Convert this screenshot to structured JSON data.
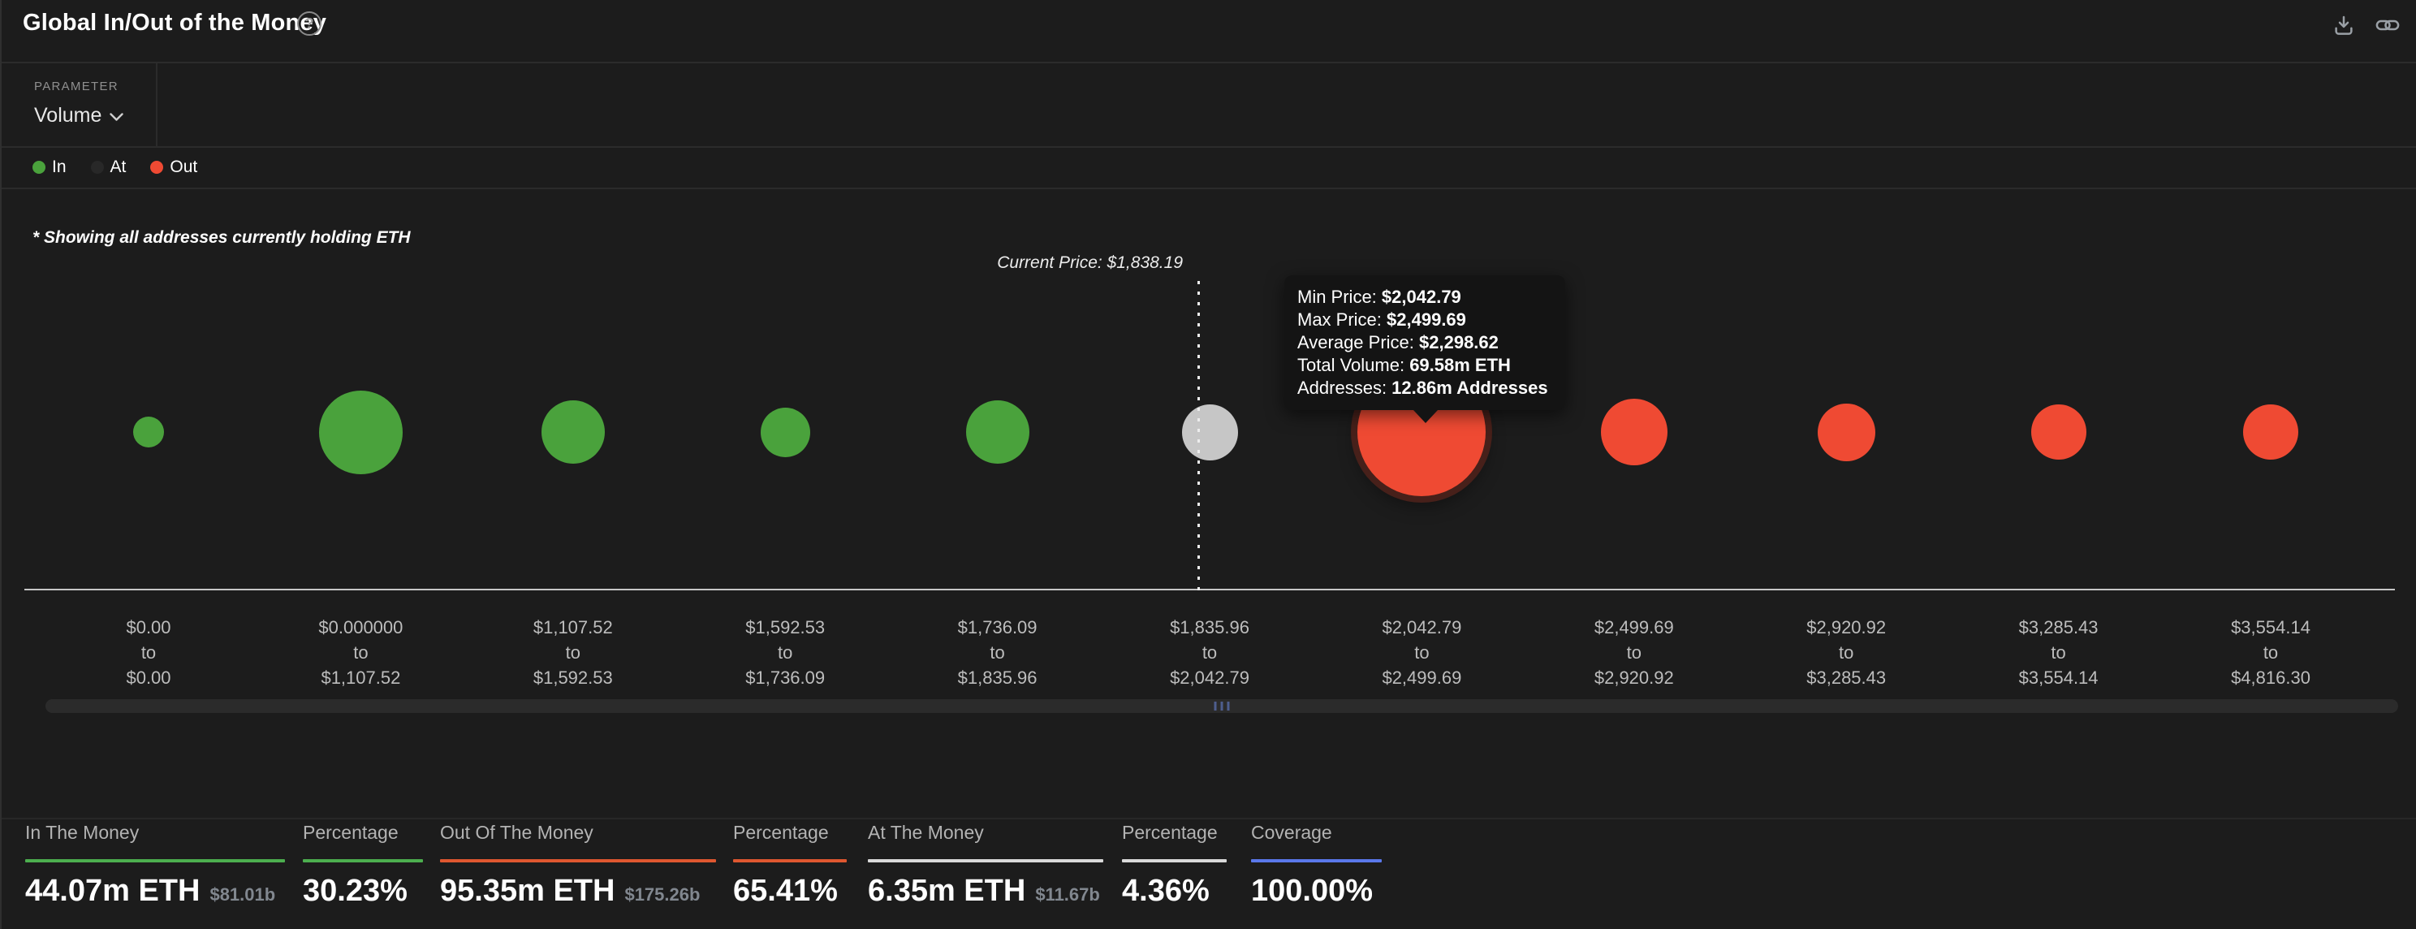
{
  "widget": {
    "title": "Global In/Out of the Money"
  },
  "header": {
    "help_icon": "?",
    "actions": {
      "download": "download-icon",
      "link": "copy-link-icon"
    }
  },
  "parameter": {
    "label": "PARAMETER",
    "value": "Volume"
  },
  "legend": {
    "items": [
      {
        "label": "In",
        "color": "#4aa23c"
      },
      {
        "label": "At",
        "color": "#282828"
      },
      {
        "label": "Out",
        "color": "#ef4a33"
      }
    ]
  },
  "note": "* Showing all addresses currently holding ETH",
  "current_price": {
    "label": "Current Price: $1,838.19"
  },
  "tooltip": {
    "rows": [
      {
        "label": "Min Price: ",
        "value": "$2,042.79"
      },
      {
        "label": "Max Price: ",
        "value": "$2,499.69"
      },
      {
        "label": "Average Price: ",
        "value": "$2,298.62"
      },
      {
        "label": "Total Volume: ",
        "value": "69.58m ETH"
      },
      {
        "label": "Addresses: ",
        "value": "12.86m Addresses"
      }
    ]
  },
  "chart_data": {
    "type": "bubble",
    "title": "Global In/Out of the Money",
    "asset": "ETH",
    "parameter": "Volume",
    "current_price": 1838.19,
    "current_price_label": "Current Price: $1,838.19",
    "legend": [
      "In",
      "At",
      "Out"
    ],
    "status_colors": {
      "in": "#4aa23c",
      "at": "#c6c6c6",
      "out": "#ef4a33"
    },
    "hovered_bucket_index": 6,
    "hovered_bucket_details": {
      "min_price": "$2,042.79",
      "max_price": "$2,499.69",
      "average_price": "$2,298.62",
      "total_volume": "69.58m ETH",
      "addresses": "12.86m Addresses"
    },
    "buckets": [
      {
        "range": [
          "$0.00",
          "to",
          "$0.00"
        ],
        "status": "in",
        "size": 38
      },
      {
        "range": [
          "$0.000000",
          "to",
          "$1,107.52"
        ],
        "status": "in",
        "size": 103
      },
      {
        "range": [
          "$1,107.52",
          "to",
          "$1,592.53"
        ],
        "status": "in",
        "size": 78
      },
      {
        "range": [
          "$1,592.53",
          "to",
          "$1,736.09"
        ],
        "status": "in",
        "size": 61
      },
      {
        "range": [
          "$1,736.09",
          "to",
          "$1,835.96"
        ],
        "status": "in",
        "size": 78
      },
      {
        "range": [
          "$1,835.96",
          "to",
          "$2,042.79"
        ],
        "status": "at",
        "size": 69
      },
      {
        "range": [
          "$2,042.79",
          "to",
          "$2,499.69"
        ],
        "status": "out",
        "size": 158,
        "hovered": true
      },
      {
        "range": [
          "$2,499.69",
          "to",
          "$2,920.92"
        ],
        "status": "out",
        "size": 82
      },
      {
        "range": [
          "$2,920.92",
          "to",
          "$3,285.43"
        ],
        "status": "out",
        "size": 71
      },
      {
        "range": [
          "$3,285.43",
          "to",
          "$3,554.14"
        ],
        "status": "out",
        "size": 68
      },
      {
        "range": [
          "$3,554.14",
          "to",
          "$4,816.30"
        ],
        "status": "out",
        "size": 68
      }
    ]
  },
  "stats": {
    "columns": [
      {
        "label": "In The Money",
        "value": "44.07m ETH",
        "sub": "$81.01b",
        "accent": "#4cae4f"
      },
      {
        "label": "Percentage",
        "value": "30.23%",
        "sub": "",
        "accent": "#4cae4f"
      },
      {
        "label": "Out Of The Money",
        "value": "95.35m ETH",
        "sub": "$175.26b",
        "accent": "#df5730"
      },
      {
        "label": "Percentage",
        "value": "65.41%",
        "sub": "",
        "accent": "#df5730"
      },
      {
        "label": "At The Money",
        "value": "6.35m ETH",
        "sub": "$11.67b",
        "accent": "#d9d9d9"
      },
      {
        "label": "Percentage",
        "value": "4.36%",
        "sub": "",
        "accent": "#d9d9d9"
      },
      {
        "label": "Coverage",
        "value": "100.00%",
        "sub": "",
        "accent": "#5a78ea"
      }
    ]
  }
}
